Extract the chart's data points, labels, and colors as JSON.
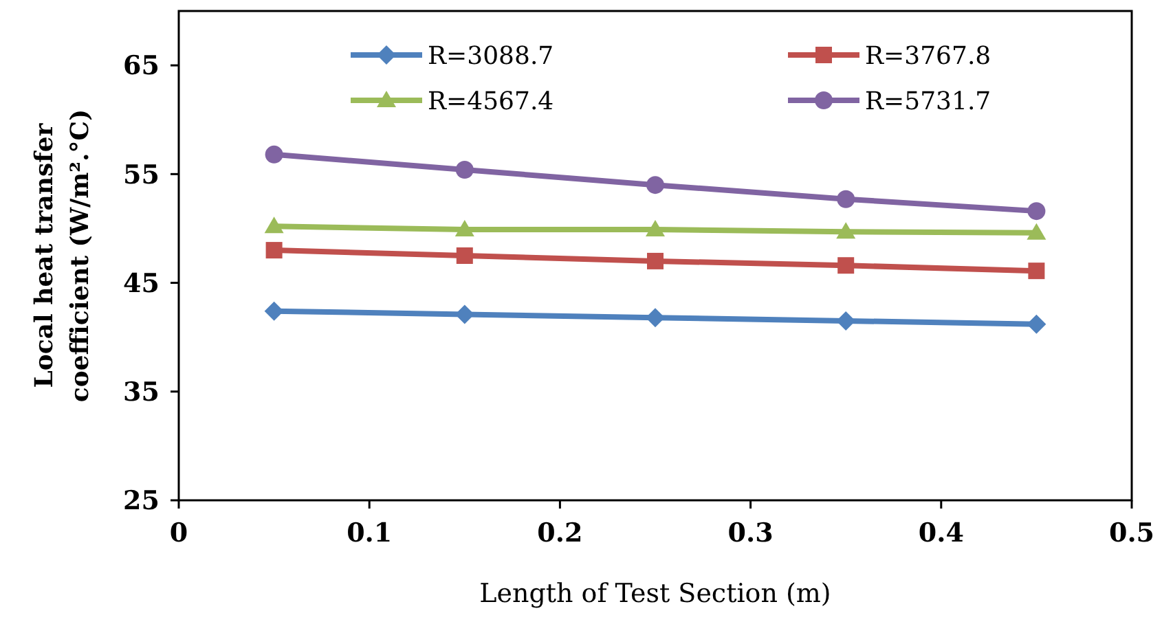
{
  "chart_data": {
    "type": "line",
    "xlabel": "Length of Test Section (m)",
    "ylabel": "Local heat transfer\ncoefficient (W/m².°C)",
    "x": [
      0.05,
      0.15,
      0.25,
      0.35,
      0.45
    ],
    "series": [
      {
        "name": "R=3088.7",
        "color": "#4f81bd",
        "marker": "diamond",
        "values": [
          42.4,
          42.1,
          41.8,
          41.5,
          41.2
        ]
      },
      {
        "name": "R=3767.8",
        "color": "#c0504d",
        "marker": "square",
        "values": [
          48.0,
          47.5,
          47.0,
          46.6,
          46.1
        ]
      },
      {
        "name": "R=4567.4",
        "color": "#9bbb59",
        "marker": "triangle",
        "values": [
          50.2,
          49.9,
          49.9,
          49.7,
          49.6
        ]
      },
      {
        "name": "R=5731.7",
        "color": "#8064a2",
        "marker": "circle",
        "values": [
          56.8,
          55.4,
          54.0,
          52.7,
          51.6
        ]
      }
    ],
    "xlim": [
      0,
      0.5
    ],
    "xticks": [
      0,
      0.1,
      0.2,
      0.3,
      0.4,
      0.5
    ],
    "ylim": [
      25,
      70
    ],
    "yticks": [
      25,
      35,
      45,
      55,
      65
    ],
    "grid": false,
    "legend": "top",
    "line_style": "solid"
  }
}
